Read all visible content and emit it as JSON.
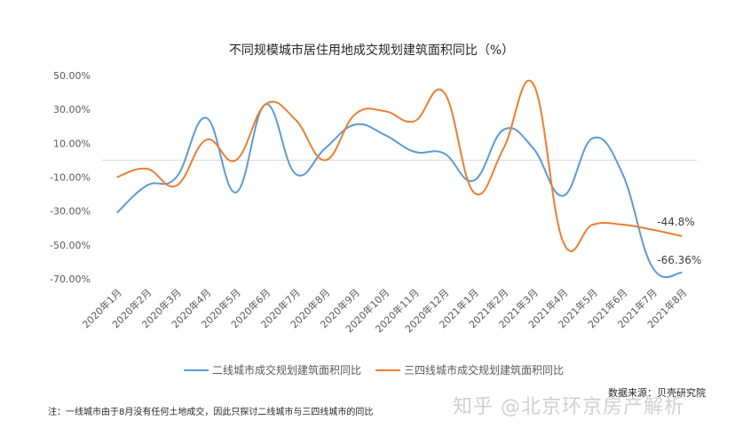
{
  "chart_data": {
    "type": "line",
    "title": "不同规模城市居住用地成交规划建筑面积同比（%）",
    "categories": [
      "2020年1月",
      "2020年2月",
      "2020年3月",
      "2020年4月",
      "2020年5月",
      "2020年6月",
      "2020年7月",
      "2020年8月",
      "2020年9月",
      "2020年10月",
      "2020年11月",
      "2020年12月",
      "2021年1月",
      "2021年2月",
      "2021年3月",
      "2021年4月",
      "2021年5月",
      "2021年6月",
      "2021年7月",
      "2021年8月"
    ],
    "y_ticks": [
      "50.00%",
      "30.00%",
      "10.00%",
      "-10.00%",
      "-30.00%",
      "-50.00%",
      "-70.00%"
    ],
    "ylim": [
      -70,
      50
    ],
    "grid": false,
    "legend_position": "bottom",
    "series": [
      {
        "name": "二线城市成交规划建筑面积同比",
        "color": "#5b9bd5",
        "values": [
          -31,
          -15,
          -10,
          25,
          -19,
          33,
          -8,
          7,
          21,
          15,
          5,
          4,
          -12,
          18,
          7,
          -21,
          13,
          -8,
          -63,
          -66.36
        ],
        "end_label": "-66.36%"
      },
      {
        "name": "三四线城市成交规划建筑面积同比",
        "color": "#ed7d31",
        "values": [
          -10,
          -5,
          -15,
          12,
          0,
          33,
          24,
          0,
          27,
          29,
          23,
          40,
          -19,
          7,
          45,
          -48,
          -38,
          -38,
          -41,
          -44.8
        ],
        "end_label": "-44.8%"
      }
    ]
  },
  "source": "数据来源：贝壳研究院",
  "note": "注：一线城市由于8月没有任何土地成交，因此只探讨二线城市与三四线城市的同比",
  "watermark": "知乎 @北京环京房产解析"
}
